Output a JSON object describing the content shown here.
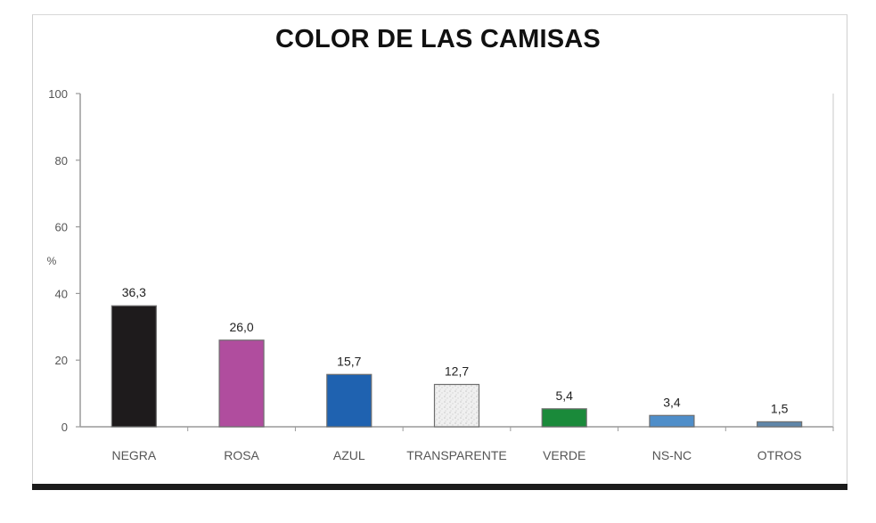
{
  "chart_data": {
    "type": "bar",
    "title": "COLOR DE LAS CAMISAS",
    "xlabel": "",
    "ylabel": "%",
    "ylim": [
      0,
      100
    ],
    "yticks": [
      0,
      20,
      40,
      60,
      80,
      100
    ],
    "grid": false,
    "categories": [
      "NEGRA",
      "ROSA",
      "AZUL",
      "TRANSPARENTE",
      "VERDE",
      "NS-NC",
      "OTROS"
    ],
    "values": [
      36.3,
      26.0,
      15.7,
      12.7,
      5.4,
      3.4,
      1.5
    ],
    "value_labels": [
      "36,3",
      "26,0",
      "15,7",
      "12,7",
      "5,4",
      "3,4",
      "1,5"
    ],
    "bar_colors": [
      "#1e1b1c",
      "#b04d9e",
      "#1f62b0",
      "#ebebeb",
      "#1a8a3a",
      "#4f8ec9",
      "#5f86a9"
    ]
  }
}
